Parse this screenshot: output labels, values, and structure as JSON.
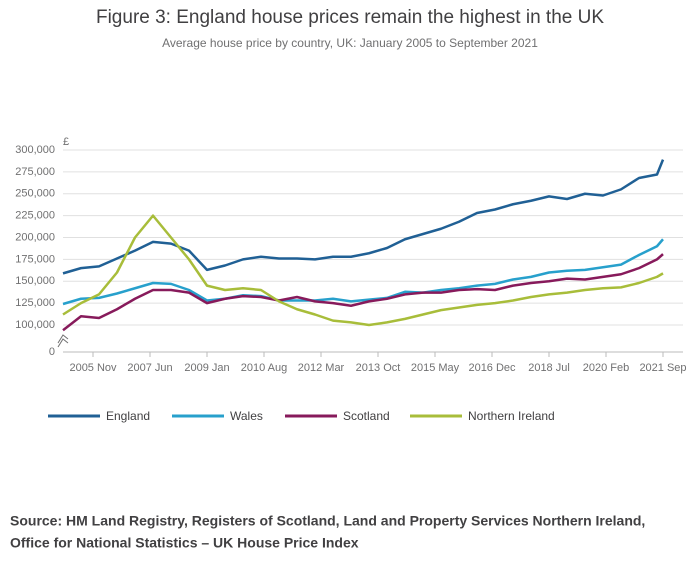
{
  "chart_data": {
    "type": "line",
    "title": "Figure 3: England house prices remain the highest in the UK",
    "subtitle": "Average house price by country, UK: January 2005 to September 2021",
    "ylabel": "£",
    "source": [
      "Source: HM Land Registry, Registers of Scotland, Land and Property Services Northern Ireland,",
      "Office for National Statistics – UK House Price Index"
    ],
    "x": [
      "2005 Jan",
      "2005 Jul",
      "2006 Jan",
      "2006 Jul",
      "2007 Jan",
      "2007 Jul",
      "2008 Jan",
      "2008 Jul",
      "2009 Jan",
      "2009 Jul",
      "2010 Jan",
      "2010 Jul",
      "2011 Jan",
      "2011 Jul",
      "2012 Jan",
      "2012 Jul",
      "2013 Jan",
      "2013 Jul",
      "2014 Jan",
      "2014 Jul",
      "2015 Jan",
      "2015 Jul",
      "2016 Jan",
      "2016 Jul",
      "2017 Jan",
      "2017 Jul",
      "2018 Jan",
      "2018 Jul",
      "2019 Jan",
      "2019 Jul",
      "2020 Jan",
      "2020 Jul",
      "2021 Jan",
      "2021 Jul",
      "2021 Sep"
    ],
    "xlim": [
      "2005 Jan",
      "2021 Sep"
    ],
    "xticks": [
      "2005 Nov",
      "2007 Jun",
      "2009 Jan",
      "2010 Aug",
      "2012 Mar",
      "2013 Oct",
      "2015 May",
      "2016 Dec",
      "2018 Jul",
      "2020 Feb",
      "2021 Sep"
    ],
    "ylim": [
      0,
      300000
    ],
    "axis_break": true,
    "yticks": [
      0,
      {
        "value": 100000,
        "label": "100,000"
      },
      {
        "value": 125000,
        "label": "125,000"
      },
      {
        "value": 150000,
        "label": "150,000"
      },
      {
        "value": 175000,
        "label": "175,000"
      },
      {
        "value": 200000,
        "label": "200,000"
      },
      {
        "value": 225000,
        "label": "225,000"
      },
      {
        "value": 250000,
        "label": "250,000"
      },
      {
        "value": 275000,
        "label": "275,000"
      },
      {
        "value": 300000,
        "label": "300,000"
      }
    ],
    "grid": true,
    "series": [
      {
        "name": "England",
        "color": "#206095",
        "values": [
          159000,
          165000,
          167000,
          176000,
          185000,
          195000,
          193000,
          185000,
          163000,
          168000,
          175000,
          178000,
          176000,
          176000,
          175000,
          178000,
          178000,
          182000,
          188000,
          198000,
          204000,
          210000,
          218000,
          228000,
          232000,
          238000,
          242000,
          247000,
          244000,
          250000,
          248000,
          255000,
          268000,
          272000,
          289000
        ]
      },
      {
        "name": "Wales",
        "color": "#27a0cc",
        "values": [
          124000,
          130000,
          131000,
          136000,
          142000,
          148000,
          147000,
          140000,
          128000,
          130000,
          134000,
          133000,
          128000,
          128000,
          128000,
          130000,
          127000,
          129000,
          131000,
          138000,
          137000,
          140000,
          142000,
          145000,
          147000,
          152000,
          155000,
          160000,
          162000,
          163000,
          166000,
          169000,
          180000,
          190000,
          198000
        ]
      },
      {
        "name": "Scotland",
        "color": "#871a5b",
        "values": [
          94000,
          110000,
          108000,
          118000,
          130000,
          140000,
          140000,
          137000,
          125000,
          130000,
          133000,
          132000,
          128000,
          132000,
          127000,
          125000,
          122000,
          127000,
          130000,
          135000,
          137000,
          137000,
          140000,
          141000,
          140000,
          145000,
          148000,
          150000,
          153000,
          152000,
          155000,
          158000,
          165000,
          175000,
          181000
        ]
      },
      {
        "name": "Northern Ireland",
        "color": "#a8bd3a",
        "values": [
          112000,
          125000,
          135000,
          160000,
          200000,
          225000,
          200000,
          175000,
          145000,
          140000,
          142000,
          140000,
          127000,
          118000,
          112000,
          105000,
          103000,
          100000,
          103000,
          107000,
          112000,
          117000,
          120000,
          123000,
          125000,
          128000,
          132000,
          135000,
          137000,
          140000,
          142000,
          143000,
          148000,
          155000,
          159000
        ]
      }
    ]
  }
}
